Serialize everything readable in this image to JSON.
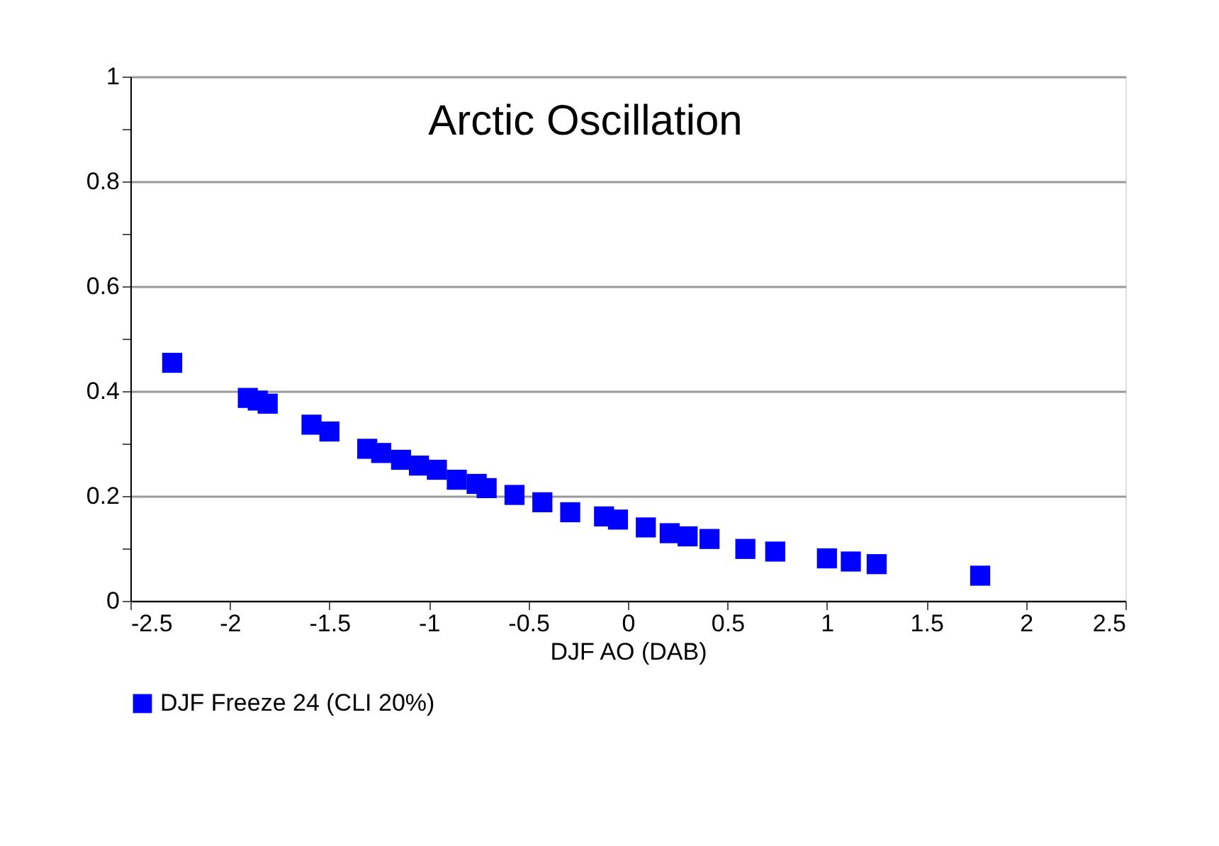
{
  "chart_data": {
    "type": "scatter",
    "title": "Arctic Oscillation",
    "xlabel": "DJF  AO  (DAB)",
    "x": [
      -2.29,
      -1.91,
      -1.86,
      -1.81,
      -1.59,
      -1.5,
      -1.31,
      -1.24,
      -1.14,
      -1.05,
      -0.96,
      -0.86,
      -0.76,
      -0.71,
      -0.57,
      -0.43,
      -0.29,
      -0.12,
      -0.05,
      0.09,
      0.21,
      0.3,
      0.41,
      0.59,
      0.74,
      1.0,
      1.12,
      1.25,
      1.77
    ],
    "series": [
      {
        "name": "DJF Freeze 24 (CLI 20%)",
        "color": "#0000ff",
        "values": [
          0.454,
          0.387,
          0.382,
          0.376,
          0.336,
          0.323,
          0.29,
          0.282,
          0.269,
          0.258,
          0.25,
          0.231,
          0.223,
          0.215,
          0.202,
          0.188,
          0.169,
          0.161,
          0.155,
          0.14,
          0.129,
          0.123,
          0.118,
          0.099,
          0.094,
          0.081,
          0.075,
          0.07,
          0.048
        ]
      }
    ],
    "xlim": [
      -2.5,
      2.5
    ],
    "xticks": [
      -2.5,
      -2,
      -1.5,
      -1,
      -0.5,
      0,
      0.5,
      1,
      1.5,
      2,
      2.5
    ],
    "ylim": [
      0,
      1
    ],
    "yticks": [
      0,
      {
        "value": 0.1,
        "label": null
      },
      0.2,
      {
        "value": 0.3,
        "label": null
      },
      0.4,
      {
        "value": 0.5,
        "label": null
      },
      0.6,
      {
        "value": 0.7,
        "label": null
      },
      0.8,
      {
        "value": 0.9,
        "label": null
      },
      1
    ],
    "grid": "y",
    "legend": "bottom",
    "marker": "square"
  }
}
